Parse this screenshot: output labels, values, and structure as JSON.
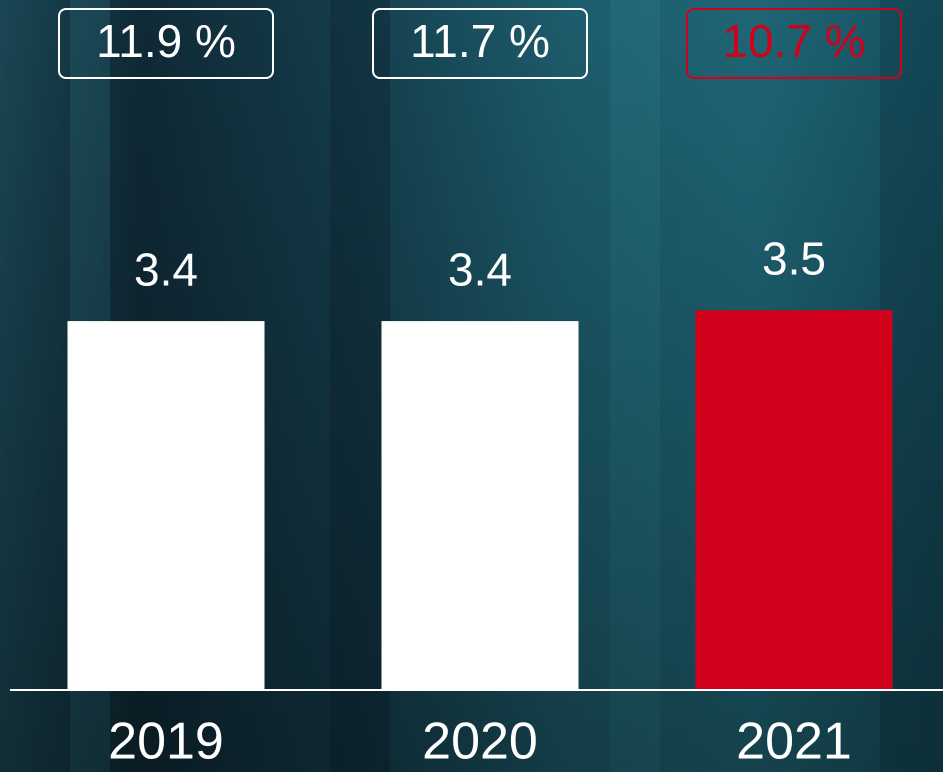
{
  "chart_data": {
    "type": "bar",
    "categories": [
      "2019",
      "2020",
      "2021"
    ],
    "values": [
      3.4,
      3.4,
      3.5
    ],
    "colors": [
      "#ffffff",
      "#ffffff",
      "#d0021b"
    ],
    "annotations": [
      "11.9 %",
      "11.7 %",
      "10.7 %"
    ],
    "ylim": [
      0,
      6
    ]
  }
}
